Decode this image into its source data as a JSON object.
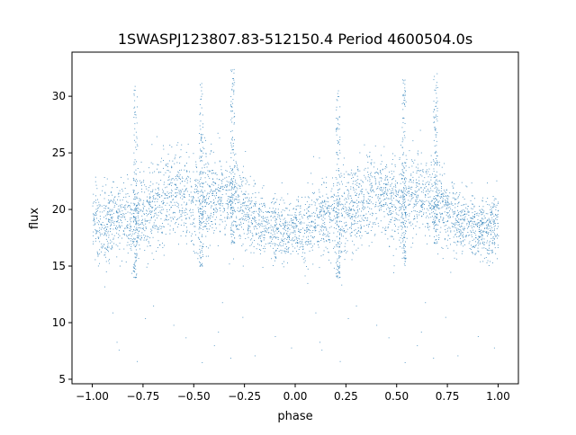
{
  "chart_data": {
    "type": "scatter",
    "title": "1SWASPJ123807.83-512150.4 Period 4600504.0s",
    "xlabel": "phase",
    "ylabel": "flux",
    "xlim": [
      -1.1,
      1.1
    ],
    "ylim": [
      4.6,
      33.9
    ],
    "xticks": [
      {
        "value": -1.0,
        "label": "−1.00"
      },
      {
        "value": -0.75,
        "label": "−0.75"
      },
      {
        "value": -0.5,
        "label": "−0.50"
      },
      {
        "value": -0.25,
        "label": "−0.25"
      },
      {
        "value": 0.0,
        "label": "0.00"
      },
      {
        "value": 0.25,
        "label": "0.25"
      },
      {
        "value": 0.5,
        "label": "0.50"
      },
      {
        "value": 0.75,
        "label": "0.75"
      },
      {
        "value": 1.0,
        "label": "1.00"
      }
    ],
    "yticks": [
      {
        "value": 5,
        "label": "5"
      },
      {
        "value": 10,
        "label": "10"
      },
      {
        "value": 15,
        "label": "15"
      },
      {
        "value": 20,
        "label": "20"
      },
      {
        "value": 25,
        "label": "25"
      },
      {
        "value": 30,
        "label": "30"
      }
    ],
    "grid": false,
    "marker_color": "#1f77b4",
    "series": [
      {
        "profile": [
          {
            "phase": -1.0,
            "flux": 18.9,
            "spread": 1.6
          },
          {
            "phase": -0.95,
            "flux": 18.3,
            "spread": 1.9
          },
          {
            "phase": -0.9,
            "flux": 19.2,
            "spread": 1.8
          },
          {
            "phase": -0.85,
            "flux": 19.6,
            "spread": 1.8
          },
          {
            "phase": -0.8,
            "flux": 19.0,
            "spread": 2.0
          },
          {
            "phase": -0.75,
            "flux": 19.8,
            "spread": 2.2
          },
          {
            "phase": -0.7,
            "flux": 20.4,
            "spread": 2.2
          },
          {
            "phase": -0.65,
            "flux": 21.0,
            "spread": 2.1
          },
          {
            "phase": -0.6,
            "flux": 21.3,
            "spread": 2.2
          },
          {
            "phase": -0.55,
            "flux": 21.0,
            "spread": 2.2
          },
          {
            "phase": -0.5,
            "flux": 20.7,
            "spread": 2.3
          },
          {
            "phase": -0.45,
            "flux": 20.9,
            "spread": 2.2
          },
          {
            "phase": -0.4,
            "flux": 21.3,
            "spread": 2.0
          },
          {
            "phase": -0.35,
            "flux": 21.2,
            "spread": 1.9
          },
          {
            "phase": -0.3,
            "flux": 20.9,
            "spread": 1.9
          },
          {
            "phase": -0.25,
            "flux": 19.6,
            "spread": 1.8
          },
          {
            "phase": -0.2,
            "flux": 18.9,
            "spread": 1.6
          },
          {
            "phase": -0.15,
            "flux": 18.7,
            "spread": 1.6
          },
          {
            "phase": -0.1,
            "flux": 18.3,
            "spread": 1.5
          },
          {
            "phase": -0.05,
            "flux": 18.1,
            "spread": 1.5
          },
          {
            "phase": 0.0,
            "flux": 18.9,
            "spread": 1.6
          },
          {
            "phase": 0.05,
            "flux": 18.3,
            "spread": 1.9
          },
          {
            "phase": 0.1,
            "flux": 19.2,
            "spread": 1.8
          },
          {
            "phase": 0.15,
            "flux": 19.6,
            "spread": 1.8
          },
          {
            "phase": 0.2,
            "flux": 19.0,
            "spread": 2.0
          },
          {
            "phase": 0.25,
            "flux": 19.8,
            "spread": 2.2
          },
          {
            "phase": 0.3,
            "flux": 20.4,
            "spread": 2.2
          },
          {
            "phase": 0.35,
            "flux": 21.0,
            "spread": 2.1
          },
          {
            "phase": 0.4,
            "flux": 21.3,
            "spread": 2.2
          },
          {
            "phase": 0.45,
            "flux": 21.0,
            "spread": 2.2
          },
          {
            "phase": 0.5,
            "flux": 20.7,
            "spread": 2.3
          },
          {
            "phase": 0.55,
            "flux": 20.9,
            "spread": 2.2
          },
          {
            "phase": 0.6,
            "flux": 21.3,
            "spread": 2.0
          },
          {
            "phase": 0.65,
            "flux": 21.2,
            "spread": 1.9
          },
          {
            "phase": 0.7,
            "flux": 20.9,
            "spread": 1.9
          },
          {
            "phase": 0.75,
            "flux": 19.6,
            "spread": 1.8
          },
          {
            "phase": 0.8,
            "flux": 18.9,
            "spread": 1.6
          },
          {
            "phase": 0.85,
            "flux": 18.7,
            "spread": 1.6
          },
          {
            "phase": 0.9,
            "flux": 18.3,
            "spread": 1.5
          },
          {
            "phase": 0.95,
            "flux": 18.1,
            "spread": 1.5
          },
          {
            "phase": 1.0,
            "flux": 18.9,
            "spread": 1.6
          }
        ],
        "spikes": [
          {
            "phase": -0.79,
            "flux_min": 14.0,
            "flux_max": 31.0
          },
          {
            "phase": -0.465,
            "flux_min": 15.0,
            "flux_max": 31.5
          },
          {
            "phase": -0.31,
            "flux_min": 17.0,
            "flux_max": 32.5
          },
          {
            "phase": 0.21,
            "flux_min": 14.0,
            "flux_max": 31.0
          },
          {
            "phase": 0.535,
            "flux_min": 15.0,
            "flux_max": 31.5
          },
          {
            "phase": 0.69,
            "flux_min": 17.0,
            "flux_max": 32.5
          }
        ],
        "outliers": [
          {
            "phase": -0.94,
            "flux": 13.2
          },
          {
            "phase": -0.9,
            "flux": 10.9
          },
          {
            "phase": -0.88,
            "flux": 8.3
          },
          {
            "phase": -0.87,
            "flux": 7.6
          },
          {
            "phase": -0.78,
            "flux": 6.6
          },
          {
            "phase": -0.74,
            "flux": 10.4
          },
          {
            "phase": -0.7,
            "flux": 11.5
          },
          {
            "phase": -0.6,
            "flux": 9.8
          },
          {
            "phase": -0.54,
            "flux": 8.7
          },
          {
            "phase": -0.46,
            "flux": 6.5
          },
          {
            "phase": -0.4,
            "flux": 8.0
          },
          {
            "phase": -0.38,
            "flux": 9.2
          },
          {
            "phase": -0.36,
            "flux": 11.8
          },
          {
            "phase": -0.32,
            "flux": 6.9
          },
          {
            "phase": -0.26,
            "flux": 10.5
          },
          {
            "phase": -0.2,
            "flux": 7.1
          },
          {
            "phase": -0.1,
            "flux": 8.8
          },
          {
            "phase": -0.02,
            "flux": 7.8
          },
          {
            "phase": 0.06,
            "flux": 13.5
          },
          {
            "phase": 0.1,
            "flux": 10.9
          },
          {
            "phase": 0.12,
            "flux": 8.3
          },
          {
            "phase": 0.13,
            "flux": 7.6
          },
          {
            "phase": 0.22,
            "flux": 6.6
          },
          {
            "phase": 0.26,
            "flux": 10.4
          },
          {
            "phase": 0.3,
            "flux": 11.5
          },
          {
            "phase": 0.4,
            "flux": 9.8
          },
          {
            "phase": 0.46,
            "flux": 8.7
          },
          {
            "phase": 0.54,
            "flux": 6.5
          },
          {
            "phase": 0.6,
            "flux": 8.0
          },
          {
            "phase": 0.62,
            "flux": 9.2
          },
          {
            "phase": 0.64,
            "flux": 11.8
          },
          {
            "phase": 0.68,
            "flux": 6.9
          },
          {
            "phase": 0.74,
            "flux": 10.5
          },
          {
            "phase": 0.8,
            "flux": 7.1
          },
          {
            "phase": 0.9,
            "flux": 8.8
          },
          {
            "phase": 0.98,
            "flux": 7.8
          }
        ]
      }
    ]
  }
}
